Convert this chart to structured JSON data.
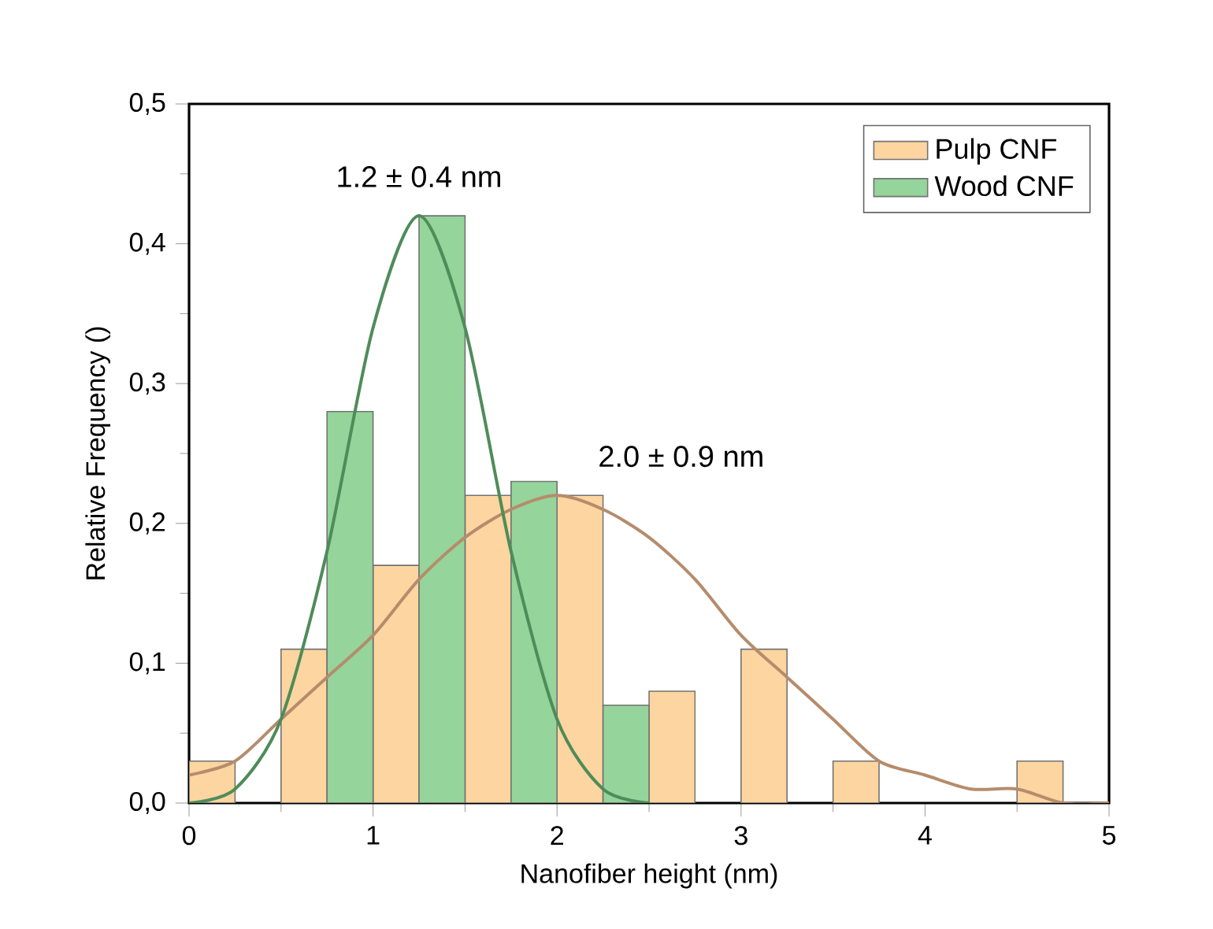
{
  "chart_data": {
    "type": "histogram",
    "xlabel": "Nanofiber height (nm)",
    "ylabel": "Relative Frequency ()",
    "bins": [
      0,
      0.5,
      1,
      1.5,
      2,
      2.5,
      3,
      3.5,
      4,
      4.5,
      5
    ],
    "series": [
      {
        "name": "Pulp CNF",
        "color": "#fdd5a0",
        "values": [
          0.03,
          0.11,
          0.17,
          0.22,
          0.22,
          0.08,
          0.11,
          0.03,
          0,
          0.03
        ]
      },
      {
        "name": "Wood CNF",
        "color": "#95d49a",
        "values": [
          0,
          0.28,
          0.42,
          0.23,
          0.07,
          0,
          0,
          0,
          0,
          0
        ]
      },
      {
        "type": "line",
        "color": "#b58c6c",
        "x": [
          0,
          0.25,
          0.5,
          0.75,
          1,
          1.25,
          1.5,
          1.75,
          2,
          2.25,
          2.5,
          2.75,
          3,
          3.25,
          3.5,
          3.75,
          4,
          4.25,
          4.5,
          4.75,
          5
        ],
        "values": [
          0.02,
          0.03,
          0.06,
          0.09,
          0.12,
          0.16,
          0.19,
          0.21,
          0.22,
          0.21,
          0.19,
          0.16,
          0.12,
          0.09,
          0.06,
          0.03,
          0.02,
          0.01,
          0.01,
          0,
          0
        ]
      },
      {
        "type": "line",
        "color": "#4e8c5a",
        "x": [
          0,
          0.25,
          0.5,
          0.75,
          1,
          1.25,
          1.5,
          1.75,
          2,
          2.25,
          2.5
        ],
        "values": [
          0,
          0.01,
          0.06,
          0.18,
          0.34,
          0.42,
          0.34,
          0.18,
          0.06,
          0.01,
          0
        ]
      }
    ],
    "annotations": [
      {
        "text": "1.2 ± 0.4 nm",
        "x": 1.25,
        "y": 0.42
      },
      {
        "text": "2.0 ± 0.9 nm",
        "x": 2.0,
        "y": 0.22
      }
    ],
    "xlim": [
      0,
      5
    ],
    "ylim": [
      0,
      0.5
    ],
    "xticks": [
      0,
      1,
      2,
      3,
      4,
      5
    ],
    "yticks": [
      {
        "value": 0,
        "label": "0,0"
      },
      {
        "value": 0.1,
        "label": "0,1"
      },
      {
        "value": 0.2,
        "label": "0,2"
      },
      {
        "value": 0.3,
        "label": "0,3"
      },
      {
        "value": 0.4,
        "label": "0,4"
      },
      {
        "value": 0.5,
        "label": "0,5"
      }
    ],
    "legend": "top right",
    "marker": "none",
    "line_style": "solid",
    "grid": false
  }
}
